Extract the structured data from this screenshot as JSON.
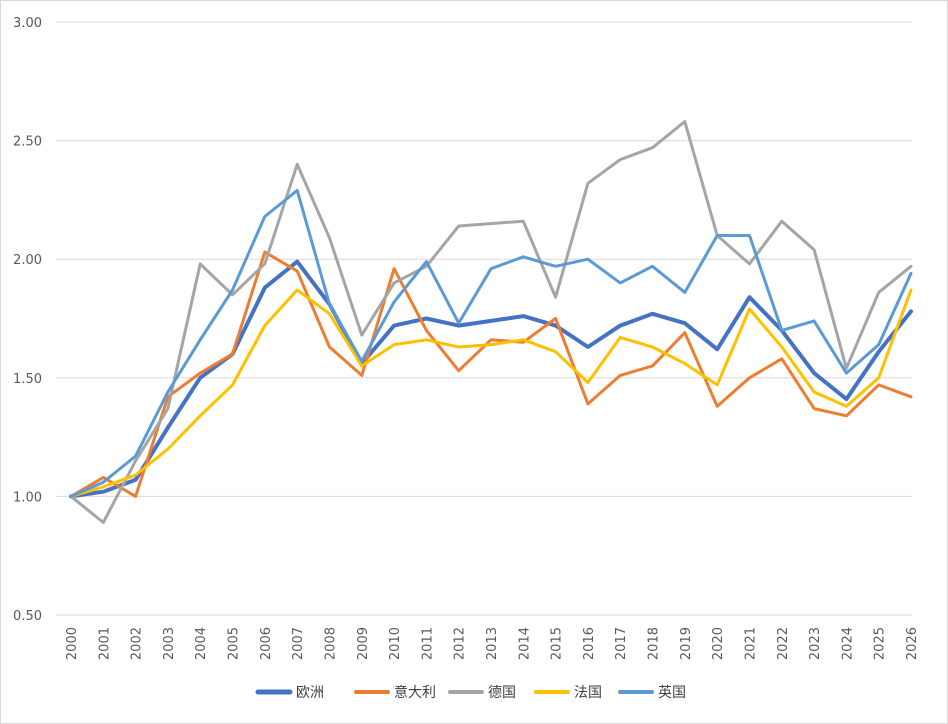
{
  "chart_data": {
    "type": "line",
    "title": "",
    "xlabel": "",
    "ylabel": "",
    "ylim": [
      0.5,
      3.0
    ],
    "yticks": [
      "0.50",
      "1.00",
      "1.50",
      "2.00",
      "2.50",
      "3.00"
    ],
    "grid": true,
    "legend_position": "bottom",
    "x": [
      "2000",
      "2001",
      "2002",
      "2003",
      "2004",
      "2005",
      "2006",
      "2007",
      "2008",
      "2009",
      "2010",
      "2011",
      "2012",
      "2013",
      "2014",
      "2015",
      "2016",
      "2017",
      "2018",
      "2019",
      "2020",
      "2021",
      "2022",
      "2023",
      "2024",
      "2025",
      "2026"
    ],
    "series": [
      {
        "name": "欧洲",
        "color": "#4472C4",
        "width": 4,
        "values": [
          1.0,
          1.02,
          1.07,
          1.29,
          1.5,
          1.6,
          1.88,
          1.99,
          1.81,
          1.56,
          1.72,
          1.75,
          1.72,
          1.74,
          1.76,
          1.72,
          1.63,
          1.72,
          1.77,
          1.73,
          1.62,
          1.84,
          1.7,
          1.52,
          1.41,
          1.61,
          1.78
        ]
      },
      {
        "name": "意大利",
        "color": "#ED7D31",
        "width": 3,
        "values": [
          1.0,
          1.08,
          1.0,
          1.42,
          1.52,
          1.6,
          2.03,
          1.95,
          1.63,
          1.51,
          1.96,
          1.7,
          1.53,
          1.66,
          1.65,
          1.75,
          1.39,
          1.51,
          1.55,
          1.69,
          1.38,
          1.5,
          1.58,
          1.37,
          1.34,
          1.47,
          1.42
        ]
      },
      {
        "name": "德国",
        "color": "#A5A5A5",
        "width": 3,
        "values": [
          1.0,
          0.89,
          1.15,
          1.37,
          1.98,
          1.85,
          1.98,
          2.4,
          2.09,
          1.68,
          1.9,
          1.97,
          2.14,
          2.15,
          2.16,
          1.84,
          2.32,
          2.42,
          2.47,
          2.58,
          2.1,
          1.98,
          2.16,
          2.04,
          1.54,
          1.86,
          1.97
        ]
      },
      {
        "name": "法国",
        "color": "#FFC000",
        "width": 3,
        "values": [
          1.0,
          1.04,
          1.09,
          1.2,
          1.34,
          1.47,
          1.72,
          1.87,
          1.77,
          1.55,
          1.64,
          1.66,
          1.63,
          1.64,
          1.66,
          1.61,
          1.48,
          1.67,
          1.63,
          1.56,
          1.47,
          1.79,
          1.63,
          1.44,
          1.38,
          1.5,
          1.87
        ]
      },
      {
        "name": "英国",
        "color": "#5B9BD5",
        "width": 3,
        "values": [
          1.0,
          1.06,
          1.17,
          1.44,
          1.66,
          1.87,
          2.18,
          2.29,
          1.81,
          1.57,
          1.82,
          1.99,
          1.73,
          1.96,
          2.01,
          1.97,
          2.0,
          1.9,
          1.97,
          1.86,
          2.1,
          2.1,
          1.7,
          1.74,
          1.52,
          1.64,
          1.94
        ]
      }
    ]
  }
}
